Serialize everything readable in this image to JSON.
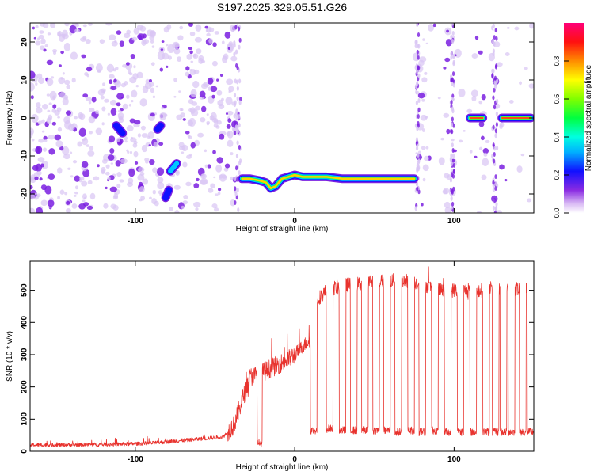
{
  "title": "S197.2025.329.05.51.G26",
  "colors": {
    "snr_line": "#e8332e",
    "spec_main": "#7a1fe0",
    "spec_light": "#d8c4f4"
  },
  "chart_data": [
    {
      "type": "heatmap",
      "xlabel": "Height of straight line (km)",
      "ylabel": "Frequency (Hz)",
      "xlim": [
        -166,
        150
      ],
      "ylim": [
        -25,
        25
      ],
      "xticks": [
        -100,
        0,
        100
      ],
      "yticks": [
        -20,
        -10,
        0,
        10,
        20
      ],
      "colorbar": {
        "label": "Normalized spectral amplitude",
        "range": [
          0,
          1
        ],
        "ticks": [
          "0.0",
          "0.2",
          "0.4",
          "0.6",
          "0.8"
        ]
      },
      "ridges": [
        {
          "x": [
            -33,
            -28,
            -22,
            -18,
            -15,
            -12,
            -8,
            -4,
            0,
            5,
            10,
            20,
            30,
            40,
            50,
            60,
            70,
            75
          ],
          "y": [
            -16,
            -16,
            -16.5,
            -17,
            -18.5,
            -18,
            -16,
            -15.5,
            -15,
            -15.5,
            -15.5,
            -15.5,
            -16,
            -16,
            -16,
            -16,
            -16,
            -16
          ],
          "amplitude": 0.85
        },
        {
          "x": [
            110,
            118
          ],
          "y": [
            0,
            0
          ],
          "amplitude": 0.95
        },
        {
          "x": [
            130,
            148
          ],
          "y": [
            0,
            0
          ],
          "amplitude": 0.95
        },
        {
          "x": [
            -78,
            -74
          ],
          "y": [
            -14,
            -12
          ],
          "amplitude": 0.45
        },
        {
          "x": [
            -81,
            -79
          ],
          "y": [
            -21,
            -19
          ],
          "amplitude": 0.4
        },
        {
          "x": [
            -112,
            -108
          ],
          "y": [
            -2,
            -4
          ],
          "amplitude": 0.35
        },
        {
          "x": [
            -86,
            -84
          ],
          "y": [
            -3,
            -2
          ],
          "amplitude": 0.3
        }
      ]
    },
    {
      "type": "line",
      "xlabel": "Height of straight line (km)",
      "ylabel": "SNR (10 * v/v)",
      "xlim": [
        -166,
        150
      ],
      "ylim": [
        0,
        590
      ],
      "xticks": [
        -100,
        0,
        100
      ],
      "yticks": [
        0,
        100,
        200,
        300,
        400,
        500
      ],
      "envelope": {
        "x": [
          -166,
          -140,
          -110,
          -90,
          -75,
          -60,
          -45,
          -38,
          -33,
          -28,
          -22,
          -18,
          -12,
          -8,
          -4,
          0,
          4,
          8,
          11,
          14,
          20,
          30,
          40,
          50,
          60,
          70,
          80,
          90,
          100,
          110,
          120,
          130,
          140,
          150
        ],
        "y": [
          20,
          20,
          22,
          25,
          32,
          38,
          45,
          80,
          160,
          230,
          240,
          250,
          265,
          275,
          285,
          300,
          320,
          340,
          350,
          470,
          500,
          515,
          520,
          530,
          530,
          530,
          520,
          500,
          500,
          500,
          500,
          505,
          505,
          510
        ]
      },
      "dropouts": {
        "x": [
          -22,
          12,
          22,
          30,
          37,
          44,
          51,
          58,
          65,
          73,
          80,
          88,
          96,
          104,
          112,
          120,
          126,
          131,
          136,
          143,
          148
        ],
        "level": [
          25,
          65,
          70,
          65,
          65,
          65,
          65,
          65,
          60,
          65,
          60,
          65,
          60,
          60,
          60,
          60,
          60,
          60,
          60,
          60,
          60
        ]
      }
    }
  ]
}
